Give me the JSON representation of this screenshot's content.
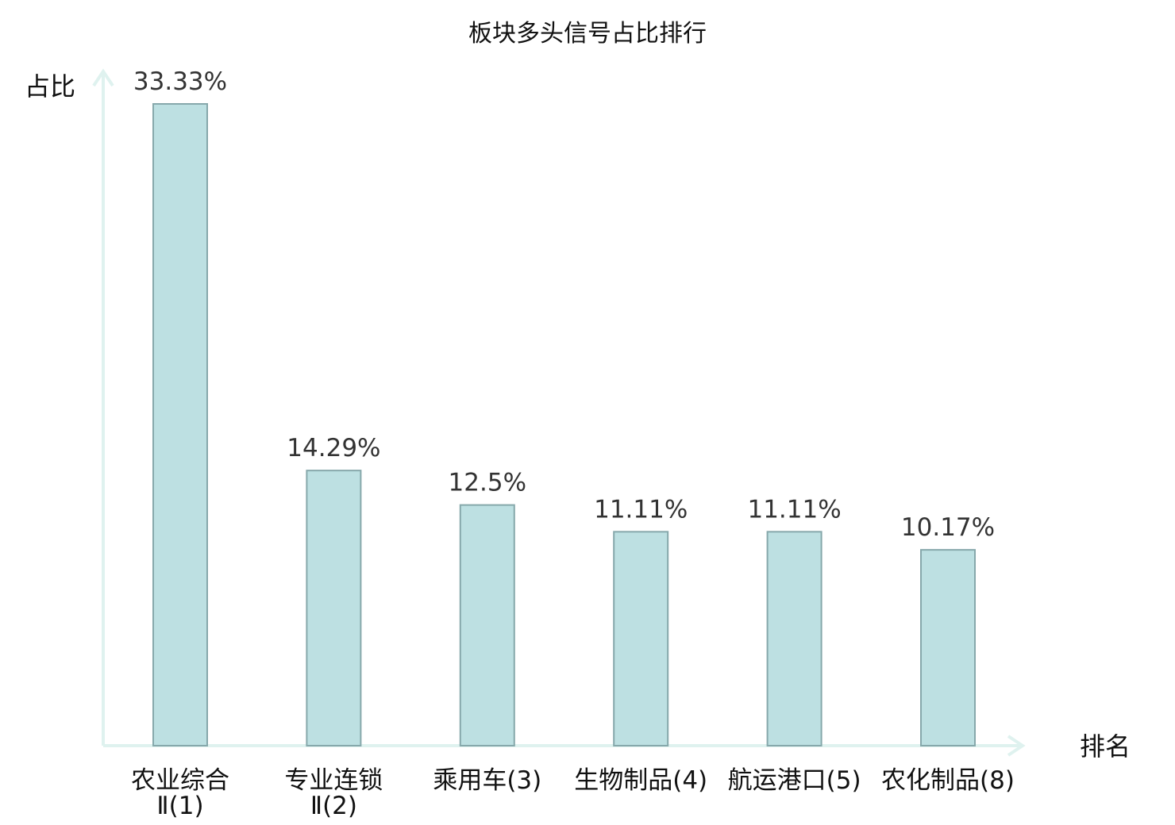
{
  "chart_data": {
    "type": "bar",
    "title": "板块多头信号占比排行",
    "xlabel": "排名",
    "ylabel": "占比",
    "categories": [
      [
        "农业综合",
        "Ⅱ(1)"
      ],
      [
        "专业连锁",
        "Ⅱ(2)"
      ],
      [
        "乘用车(3)"
      ],
      [
        "生物制品(4)"
      ],
      [
        "航运港口(5)"
      ],
      [
        "农化制品(8)"
      ]
    ],
    "values": [
      33.33,
      14.29,
      12.5,
      11.11,
      11.11,
      10.17
    ],
    "value_labels": [
      "33.33%",
      "14.29%",
      "12.5%",
      "11.11%",
      "11.11%",
      "10.17%"
    ],
    "ylim": [
      0,
      33.33
    ],
    "highlight_index": 5,
    "colors": {
      "bar_fill": "#bde0e2",
      "bar_stroke": "#86a8ab",
      "axis": "#dff2ef",
      "highlight_text": "#e31b1b",
      "text": "#111111",
      "value_text": "#333333"
    },
    "grid": false,
    "legend": "none"
  }
}
